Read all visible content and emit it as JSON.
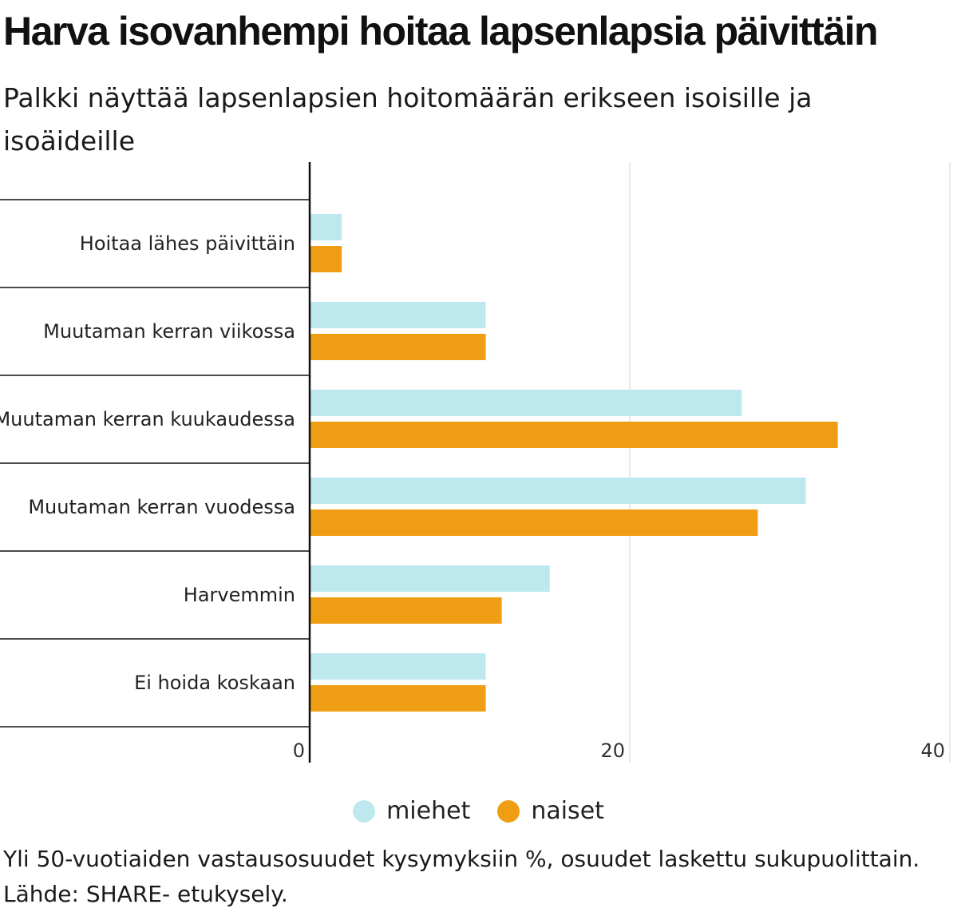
{
  "title": "Harva isovanhempi hoitaa lapsenlapsia päivittäin",
  "subtitle": "Palkki näyttää lapsenlapsien hoitomäärän erikseen isoisille ja isoäideille",
  "footer": {
    "note": "Yli 50-vuotiaiden vastausosuudet kysymyksiin %, osuudet laskettu sukupuolittain.",
    "source": "Lähde: SHARE- etukysely."
  },
  "colors": {
    "miehet": "#bde9ee",
    "naiset": "#ef9e13",
    "grid": "#e2e2e2",
    "axis": "#111111"
  },
  "chart_data": {
    "type": "bar",
    "orientation": "horizontal",
    "categories": [
      "Hoitaa lähes päivittäin",
      "Muutaman kerran viikossa",
      "Muutaman kerran kuukaudessa",
      "Muutaman kerran vuodessa",
      "Harvemmin",
      "Ei hoida koskaan"
    ],
    "series": [
      {
        "name": "miehet",
        "values": [
          2,
          11,
          27,
          31,
          15,
          11
        ]
      },
      {
        "name": "naiset",
        "values": [
          2,
          11,
          33,
          28,
          12,
          11
        ]
      }
    ],
    "xlim": [
      0,
      40
    ],
    "xticks": [
      "0",
      "20",
      "40"
    ],
    "grid": true,
    "legend_position": "bottom-center"
  }
}
